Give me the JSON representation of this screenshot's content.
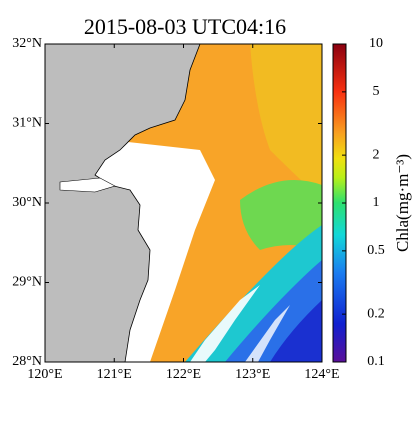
{
  "map": {
    "title": "2015-08-03 UTC04:16",
    "xlim": [
      120,
      124
    ],
    "ylim": [
      28,
      32
    ],
    "xticks": [
      {
        "value": 120,
        "label": "120°E"
      },
      {
        "value": 121,
        "label": "121°E"
      },
      {
        "value": 122,
        "label": "122°E"
      },
      {
        "value": 123,
        "label": "123°E"
      },
      {
        "value": 124,
        "label": "124°E"
      }
    ],
    "yticks": [
      {
        "value": 28,
        "label": "28°N"
      },
      {
        "value": 29,
        "label": "29°N"
      },
      {
        "value": 30,
        "label": "30°N"
      },
      {
        "value": 31,
        "label": "31°N"
      },
      {
        "value": 32,
        "label": "32°N"
      }
    ],
    "colorbar": {
      "label": "Chla(mg·m⁻³)",
      "scale": "log",
      "lim": [
        0.1,
        10
      ],
      "ticks": [
        0.1,
        0.2,
        0.5,
        1,
        2,
        5,
        10
      ]
    }
  }
}
